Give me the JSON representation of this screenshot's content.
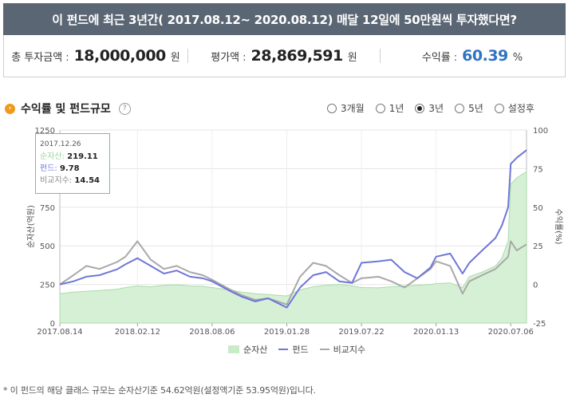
{
  "header": {
    "title": "이 펀드에 최근 3년간( 2017.08.12~ 2020.08.12) 매달 12일에 50만원씩 투자했다면?"
  },
  "summary": {
    "invest_label": "총 투자금액",
    "invest_value": "18,000,000",
    "invest_unit": "원",
    "eval_label": "평가액",
    "eval_value": "28,869,591",
    "eval_unit": "원",
    "return_label": "수익률",
    "return_value": "60.39",
    "return_unit": "%",
    "colon": ":"
  },
  "section": {
    "title": "수익률 및 펀드규모",
    "help_icon": "question-icon",
    "bullet_icon": "chevron-right-icon"
  },
  "periods": {
    "options": [
      "3개월",
      "1년",
      "3년",
      "5년",
      "설정후"
    ],
    "selected": "3년"
  },
  "tooltip": {
    "date": "2017.12.26",
    "rows": [
      {
        "label": "순자산:",
        "value": "219.11",
        "color": "#9fd49f"
      },
      {
        "label": "펀드:",
        "value": "9.78",
        "color": "#6f76d8"
      },
      {
        "label": "비교지수:",
        "value": "14.54",
        "color": "#888888"
      }
    ]
  },
  "footnote": "* 이 펀드의 해당 클래스 규모는 순자산기준 54.62억원(설정액기준 53.95억원)입니다.",
  "chart_data": {
    "type": "line",
    "title": "",
    "ylabel_left": "순자산(억원)",
    "ylabel_right": "수익률(%)",
    "x_ticks": [
      "2017.08.14",
      "2018.02.12",
      "2018.08.06",
      "2019.01.28",
      "2019.07.22",
      "2020.01.13",
      "2020.07.06"
    ],
    "x_start": "2017.08.14",
    "x_end": "2020.08.12",
    "ylim_left": [
      0,
      1250
    ],
    "yticks_left": [
      0,
      250,
      500,
      750,
      1000,
      1250
    ],
    "ylim_right": [
      -25,
      100
    ],
    "yticks_right": [
      -25,
      0,
      25,
      50,
      75,
      100
    ],
    "legend": [
      "순자산",
      "펀드",
      "비교지수"
    ],
    "legend_position": "bottom",
    "grid": true,
    "colors": {
      "net_assets": "#9fd49f",
      "fund": "#6f76d8",
      "benchmark": "#a8a8a8"
    },
    "series": [
      {
        "name": "순자산",
        "axis": "left",
        "x": [
          "2017-08-14",
          "2017-09-15",
          "2017-10-15",
          "2017-11-15",
          "2017-12-26",
          "2018-01-15",
          "2018-02-12",
          "2018-03-15",
          "2018-04-15",
          "2018-05-15",
          "2018-06-15",
          "2018-07-15",
          "2018-08-06",
          "2018-09-15",
          "2018-10-15",
          "2018-11-15",
          "2018-12-15",
          "2019-01-28",
          "2019-02-28",
          "2019-03-31",
          "2019-04-30",
          "2019-05-31",
          "2019-06-30",
          "2019-07-22",
          "2019-08-31",
          "2019-09-30",
          "2019-10-31",
          "2019-11-30",
          "2019-12-31",
          "2020-01-13",
          "2020-02-15",
          "2020-03-15",
          "2020-03-31",
          "2020-04-30",
          "2020-05-31",
          "2020-06-15",
          "2020-06-30",
          "2020-07-06",
          "2020-07-20",
          "2020-08-12"
        ],
        "values": [
          190,
          200,
          205,
          210,
          219,
          230,
          240,
          235,
          245,
          248,
          240,
          238,
          230,
          215,
          200,
          190,
          185,
          175,
          215,
          235,
          245,
          250,
          240,
          230,
          228,
          235,
          240,
          245,
          250,
          255,
          260,
          230,
          300,
          330,
          370,
          420,
          530,
          900,
          940,
          980
        ]
      },
      {
        "name": "펀드",
        "axis": "right",
        "x": [
          "2017-08-14",
          "2017-09-15",
          "2017-10-15",
          "2017-11-15",
          "2017-12-26",
          "2018-01-15",
          "2018-02-12",
          "2018-03-15",
          "2018-04-15",
          "2018-05-15",
          "2018-06-15",
          "2018-07-15",
          "2018-08-06",
          "2018-09-15",
          "2018-10-15",
          "2018-11-15",
          "2018-12-15",
          "2019-01-28",
          "2019-02-28",
          "2019-03-31",
          "2019-04-30",
          "2019-05-31",
          "2019-06-30",
          "2019-07-22",
          "2019-08-31",
          "2019-09-30",
          "2019-10-31",
          "2019-11-30",
          "2019-12-31",
          "2020-01-13",
          "2020-02-15",
          "2020-03-15",
          "2020-03-31",
          "2020-04-30",
          "2020-05-31",
          "2020-06-15",
          "2020-06-30",
          "2020-07-06",
          "2020-07-20",
          "2020-08-12"
        ],
        "values": [
          0,
          2,
          5,
          6,
          9.78,
          13,
          17,
          12,
          7,
          9,
          5,
          4,
          2,
          -4,
          -8,
          -11,
          -9,
          -15,
          -2,
          6,
          8,
          2,
          1,
          14,
          15,
          16,
          8,
          4,
          11,
          18,
          20,
          7,
          14,
          22,
          30,
          38,
          50,
          78,
          82,
          87
        ]
      },
      {
        "name": "비교지수",
        "axis": "right",
        "x": [
          "2017-08-14",
          "2017-09-15",
          "2017-10-15",
          "2017-11-15",
          "2017-12-26",
          "2018-01-15",
          "2018-02-12",
          "2018-03-15",
          "2018-04-15",
          "2018-05-15",
          "2018-06-15",
          "2018-07-15",
          "2018-08-06",
          "2018-09-15",
          "2018-10-15",
          "2018-11-15",
          "2018-12-15",
          "2019-01-28",
          "2019-02-28",
          "2019-03-31",
          "2019-04-30",
          "2019-05-31",
          "2019-06-30",
          "2019-07-22",
          "2019-08-31",
          "2019-09-30",
          "2019-10-31",
          "2019-11-30",
          "2019-12-31",
          "2020-01-13",
          "2020-02-15",
          "2020-03-15",
          "2020-03-31",
          "2020-04-30",
          "2020-05-31",
          "2020-06-15",
          "2020-06-30",
          "2020-07-06",
          "2020-07-20",
          "2020-08-12"
        ],
        "values": [
          0,
          6,
          12,
          10,
          14.54,
          18,
          28,
          16,
          10,
          12,
          8,
          6,
          3,
          -3,
          -7,
          -10,
          -9,
          -13,
          5,
          14,
          12,
          6,
          1,
          4,
          5,
          2,
          -2,
          4,
          10,
          15,
          12,
          -6,
          2,
          6,
          10,
          14,
          18,
          28,
          22,
          26
        ]
      }
    ]
  }
}
